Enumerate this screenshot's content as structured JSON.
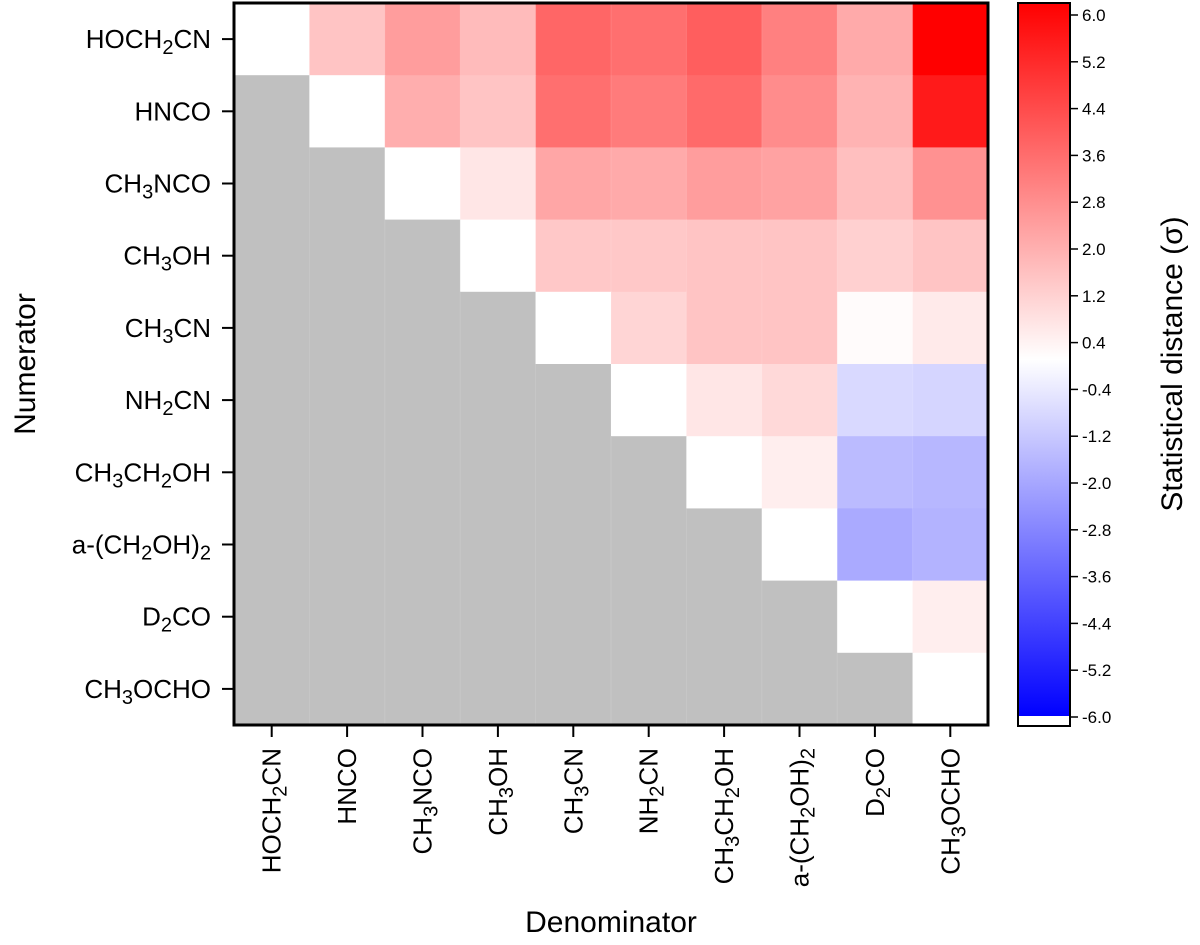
{
  "chart_data": {
    "type": "heatmap",
    "xlabel": "Denominator",
    "ylabel": "Numerator",
    "colorbar_label": "Statistical distance (σ)",
    "colorbar_range": [
      -6.0,
      6.0
    ],
    "colorbar_ticks": [
      "6.0",
      "5.2",
      "4.4",
      "3.6",
      "2.8",
      "2.0",
      "1.2",
      "0.4",
      "-0.4",
      "-1.2",
      "-2.0",
      "-2.8",
      "-3.6",
      "-4.4",
      "-5.2",
      "-6.0"
    ],
    "colors": {
      "positive": "#ff0000",
      "negative": "#0000ff",
      "neutral": "#ffffff",
      "masked": "#c0c0c0"
    },
    "rows": [
      [
        {
          "t": "HOCH"
        },
        {
          "t": "2",
          "s": 1
        },
        {
          "t": "CN"
        }
      ],
      [
        {
          "t": "HNCO"
        }
      ],
      [
        {
          "t": "CH"
        },
        {
          "t": "3",
          "s": 1
        },
        {
          "t": "NCO"
        }
      ],
      [
        {
          "t": "CH"
        },
        {
          "t": "3",
          "s": 1
        },
        {
          "t": "OH"
        }
      ],
      [
        {
          "t": "CH"
        },
        {
          "t": "3",
          "s": 1
        },
        {
          "t": "CN"
        }
      ],
      [
        {
          "t": "NH"
        },
        {
          "t": "2",
          "s": 1
        },
        {
          "t": "CN"
        }
      ],
      [
        {
          "t": "CH"
        },
        {
          "t": "3",
          "s": 1
        },
        {
          "t": "CH"
        },
        {
          "t": "2",
          "s": 1
        },
        {
          "t": "OH"
        }
      ],
      [
        {
          "t": "a-(CH"
        },
        {
          "t": "2",
          "s": 1
        },
        {
          "t": "OH)"
        },
        {
          "t": "2",
          "s": 1
        }
      ],
      [
        {
          "t": "D"
        },
        {
          "t": "2",
          "s": 1
        },
        {
          "t": "CO"
        }
      ],
      [
        {
          "t": "CH"
        },
        {
          "t": "3",
          "s": 1
        },
        {
          "t": "OCHO"
        }
      ]
    ],
    "columns": [
      [
        {
          "t": "HOCH"
        },
        {
          "t": "2",
          "s": 1
        },
        {
          "t": "CN"
        }
      ],
      [
        {
          "t": "HNCO"
        }
      ],
      [
        {
          "t": "CH"
        },
        {
          "t": "3",
          "s": 1
        },
        {
          "t": "NCO"
        }
      ],
      [
        {
          "t": "CH"
        },
        {
          "t": "3",
          "s": 1
        },
        {
          "t": "OH"
        }
      ],
      [
        {
          "t": "CH"
        },
        {
          "t": "3",
          "s": 1
        },
        {
          "t": "CN"
        }
      ],
      [
        {
          "t": "NH"
        },
        {
          "t": "2",
          "s": 1
        },
        {
          "t": "CN"
        }
      ],
      [
        {
          "t": "CH"
        },
        {
          "t": "3",
          "s": 1
        },
        {
          "t": "CH"
        },
        {
          "t": "2",
          "s": 1
        },
        {
          "t": "OH"
        }
      ],
      [
        {
          "t": "a-(CH"
        },
        {
          "t": "2",
          "s": 1
        },
        {
          "t": "OH)"
        },
        {
          "t": "2",
          "s": 1
        }
      ],
      [
        {
          "t": "D"
        },
        {
          "t": "2",
          "s": 1
        },
        {
          "t": "CO"
        }
      ],
      [
        {
          "t": "CH"
        },
        {
          "t": "3",
          "s": 1
        },
        {
          "t": "OCHO"
        }
      ]
    ],
    "values": [
      [
        0.0,
        1.4,
        2.3,
        1.6,
        3.6,
        3.4,
        3.8,
        3.0,
        2.0,
        6.0
      ],
      [
        null,
        0.0,
        1.9,
        1.4,
        3.4,
        3.1,
        3.5,
        2.7,
        1.8,
        5.4
      ],
      [
        null,
        null,
        0.0,
        0.6,
        2.1,
        2.0,
        2.3,
        2.2,
        1.5,
        2.6
      ],
      [
        null,
        null,
        null,
        0.0,
        1.3,
        1.3,
        1.4,
        1.4,
        1.1,
        1.4
      ],
      [
        null,
        null,
        null,
        null,
        0.0,
        1.0,
        1.4,
        1.4,
        0.1,
        0.5
      ],
      [
        null,
        null,
        null,
        null,
        null,
        0.0,
        0.6,
        0.9,
        -0.9,
        -1.0
      ],
      [
        null,
        null,
        null,
        null,
        null,
        null,
        0.0,
        0.4,
        -1.6,
        -1.7
      ],
      [
        null,
        null,
        null,
        null,
        null,
        null,
        null,
        0.0,
        -2.0,
        -1.8
      ],
      [
        null,
        null,
        null,
        null,
        null,
        null,
        null,
        null,
        0.0,
        0.4
      ],
      [
        null,
        null,
        null,
        null,
        null,
        null,
        null,
        null,
        null,
        0.0
      ]
    ]
  }
}
